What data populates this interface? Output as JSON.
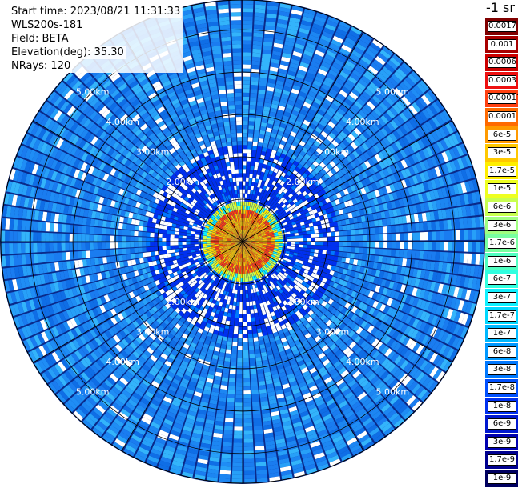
{
  "info": {
    "start_time": "Start time: 2023/08/21 11:31:33",
    "instrument": "WLS200s-181",
    "field": "Field: BETA",
    "elevation": "Elevation(deg): 35.30",
    "nrays": "NRays: 120"
  },
  "colorbar": {
    "title": "-1 sr",
    "entries": [
      {
        "label": "0.0017",
        "color": "#800000"
      },
      {
        "label": "0.001",
        "color": "#a80000"
      },
      {
        "label": "0.0006",
        "color": "#cc0000"
      },
      {
        "label": "0.0003",
        "color": "#ee1010"
      },
      {
        "label": "0.00017",
        "color": "#ff4010"
      },
      {
        "label": "0.0001",
        "color": "#ff6a00"
      },
      {
        "label": "6e-5",
        "color": "#ff9a00"
      },
      {
        "label": "3e-5",
        "color": "#ffc800"
      },
      {
        "label": "1.7e-5",
        "color": "#ffee00"
      },
      {
        "label": "1e-5",
        "color": "#eeff20"
      },
      {
        "label": "6e-6",
        "color": "#c8ff50"
      },
      {
        "label": "3e-6",
        "color": "#a0ff80"
      },
      {
        "label": "1.7e-6",
        "color": "#78ffa0"
      },
      {
        "label": "1e-6",
        "color": "#50ffc0"
      },
      {
        "label": "6e-7",
        "color": "#30ffe0"
      },
      {
        "label": "3e-7",
        "color": "#10f0ff"
      },
      {
        "label": "1.7e-7",
        "color": "#00d8ff"
      },
      {
        "label": "1e-7",
        "color": "#00b8ff"
      },
      {
        "label": "6e-8",
        "color": "#0098ff"
      },
      {
        "label": "3e-8",
        "color": "#0078ff"
      },
      {
        "label": "1.7e-8",
        "color": "#0050ff"
      },
      {
        "label": "1e-8",
        "color": "#0030f0"
      },
      {
        "label": "6e-9",
        "color": "#0018d0"
      },
      {
        "label": "3e-9",
        "color": "#0000b0"
      },
      {
        "label": "1.7e-9",
        "color": "#000090"
      },
      {
        "label": "1e-9",
        "color": "#000060"
      }
    ]
  },
  "chart_data": {
    "type": "heatmap",
    "projection": "polar-ppi",
    "field": "BETA",
    "nrays": 120,
    "range_rings_km": [
      1,
      2,
      3,
      4,
      5
    ],
    "range_labels": {
      "2": "2.00km",
      "3": "3.00km",
      "4": "4.00km",
      "5": "5.00km"
    },
    "max_range_km": 5.7,
    "background_level": "1e-8",
    "near_range_peak": "0.0001",
    "grid": true
  }
}
